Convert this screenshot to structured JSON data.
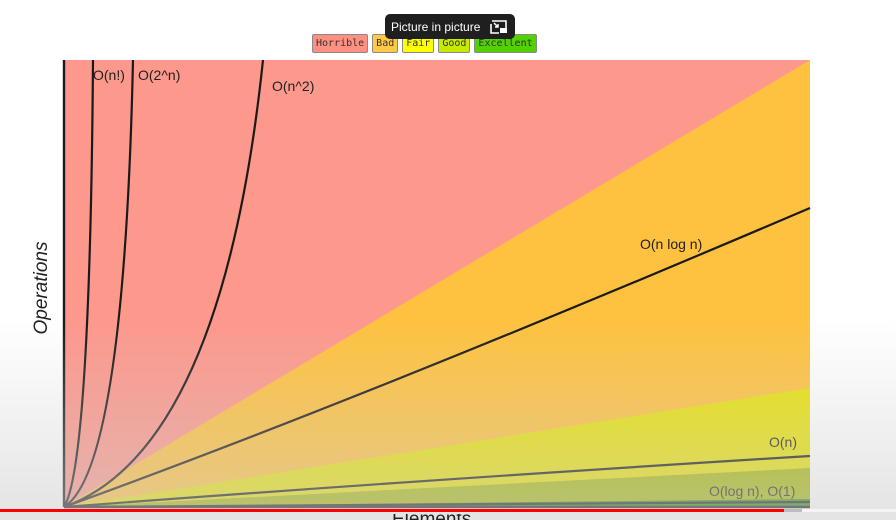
{
  "overlay": {
    "pip_label": "Picture in picture",
    "pip_icon": "picture-in-picture-icon"
  },
  "video": {
    "progress": 0.875,
    "buffered": 0.895,
    "colors": {
      "progress": "#ff0000",
      "buffer": "#bdbdbd"
    }
  },
  "chart_data": {
    "type": "area",
    "title": "",
    "xlabel": "Elements",
    "ylabel": "Operations",
    "legend": {
      "placement": "top-center",
      "items": [
        {
          "label": "Horrible",
          "color": "#ff8f80"
        },
        {
          "label": "Bad",
          "color": "#ffc845"
        },
        {
          "label": "Fair",
          "color": "#ffff00"
        },
        {
          "label": "Good",
          "color": "#c8ea00"
        },
        {
          "label": "Excellent",
          "color": "#53d000"
        }
      ]
    },
    "regions": [
      {
        "name": "Horrible",
        "color": "#fd988c"
      },
      {
        "name": "Bad",
        "color": "#fec240"
      },
      {
        "name": "Fair",
        "color": "#e8e20c"
      },
      {
        "name": "Good",
        "color": "#a6b80a"
      },
      {
        "name": "Excellent",
        "color": "#2b8a0e"
      }
    ],
    "curves": [
      {
        "label": "O(n!)"
      },
      {
        "label": "O(2^n)"
      },
      {
        "label": "O(n^2)"
      },
      {
        "label": "O(n log n)"
      },
      {
        "label": "O(n)"
      },
      {
        "label": "O(log n), O(1)"
      }
    ],
    "grid": false,
    "ticks": false
  }
}
